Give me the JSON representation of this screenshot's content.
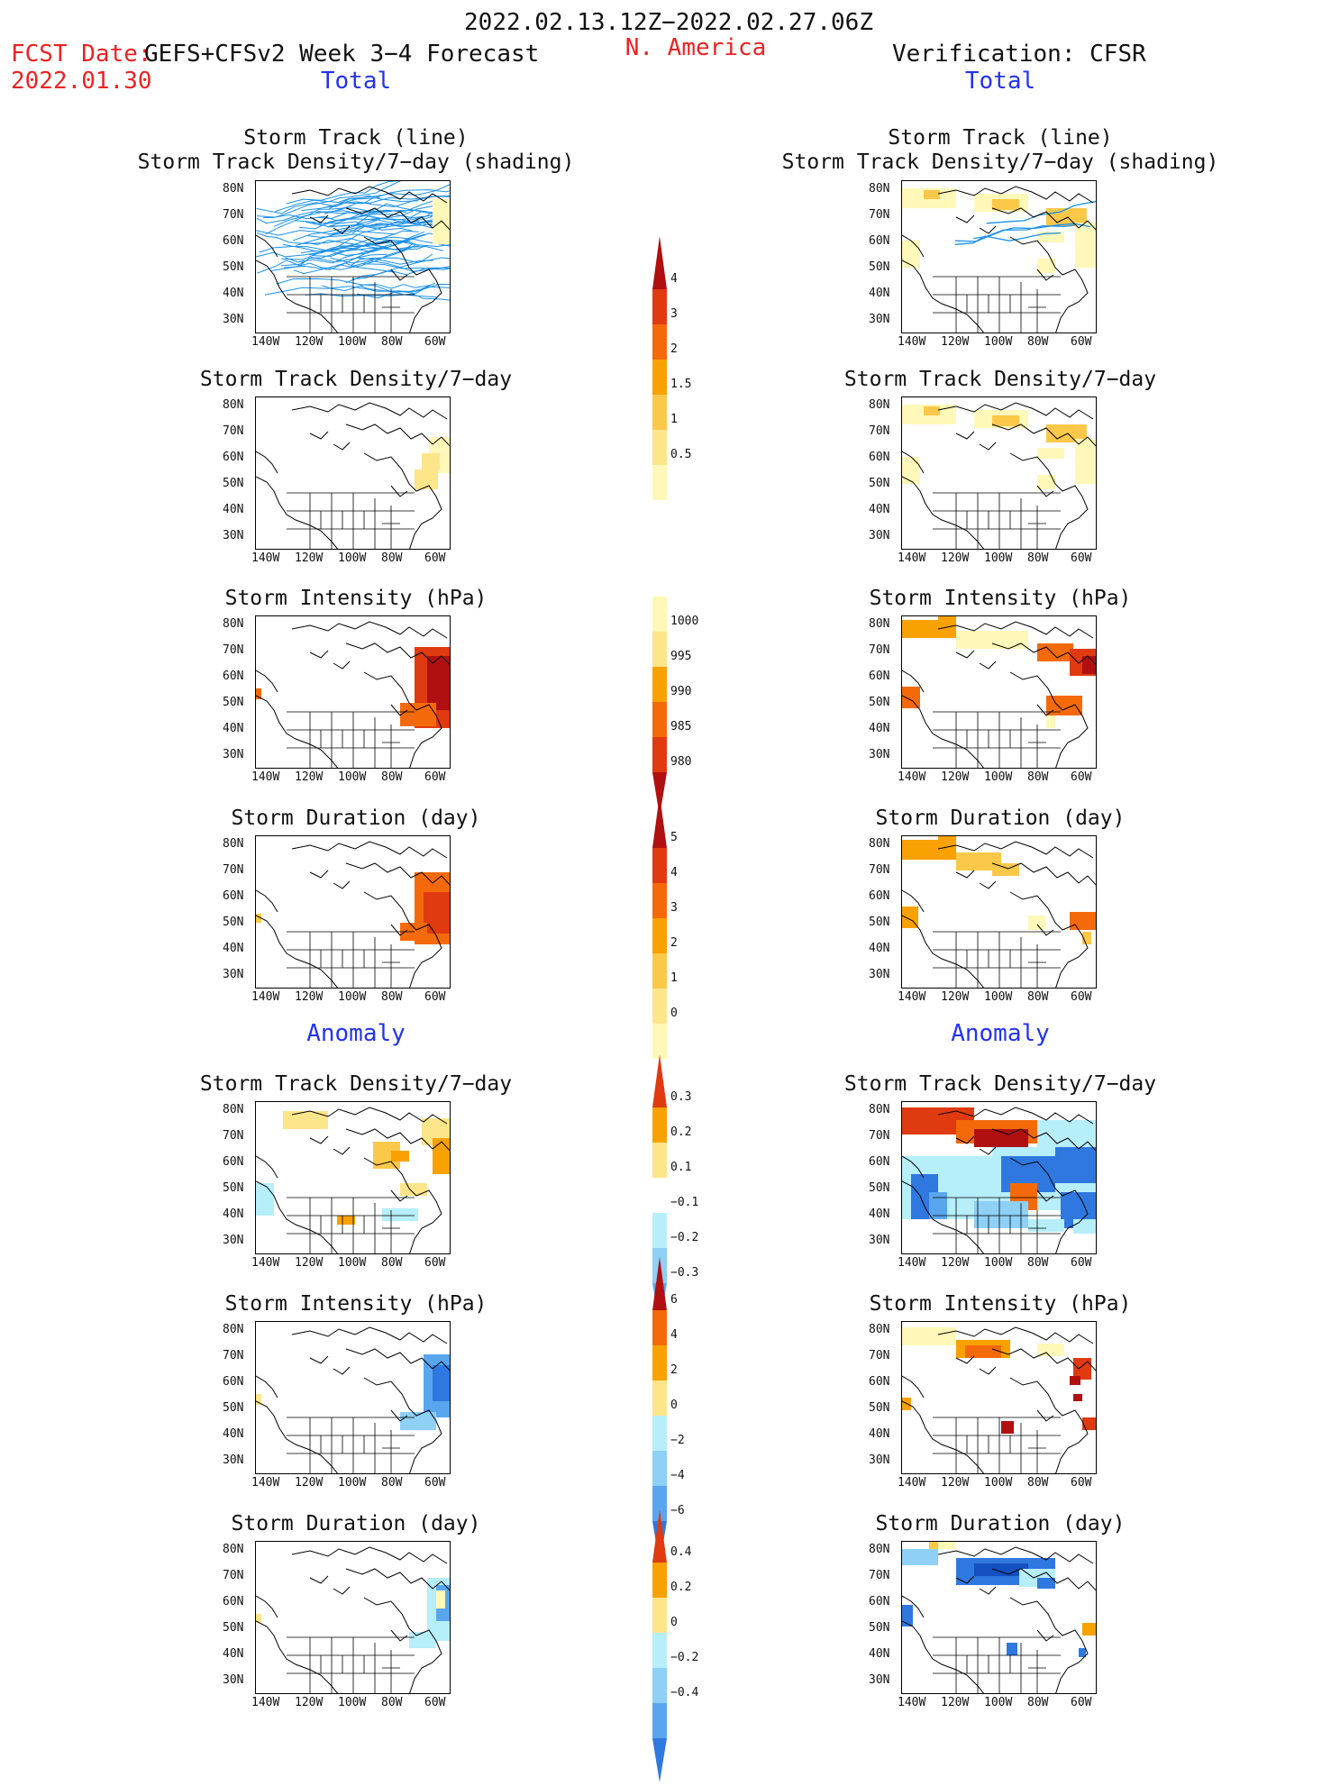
{
  "header": {
    "period": "2022.02.13.12Z−2022.02.27.06Z",
    "fcst_date_label": "FCST Date:",
    "fcst_date_value": "2022.01.30",
    "forecast_title": "GEFS+CFSv2 Week 3−4 Forecast",
    "region": "N. America",
    "verification": "Verification: CFSR"
  },
  "sections": {
    "total": "Total",
    "anomaly": "Anomaly"
  },
  "panel_titles": {
    "track_line": "Storm Track (line)",
    "track_shading": "Storm Track Density/7−day (shading)",
    "density": "Storm Track Density/7−day",
    "intensity": "Storm Intensity (hPa)",
    "duration": "Storm Duration (day)"
  },
  "axes": {
    "lat_labels": [
      "80N",
      "70N",
      "60N",
      "50N",
      "40N",
      "30N"
    ],
    "lon_labels": [
      "140W",
      "120W",
      "100W",
      "80W",
      "60W"
    ]
  },
  "colorbars": {
    "density_total": [
      "4",
      "3",
      "2",
      "1.5",
      "1",
      "0.5"
    ],
    "intensity_total": [
      "1000",
      "995",
      "990",
      "985",
      "980"
    ],
    "duration_total": [
      "5",
      "4",
      "3",
      "2",
      "1",
      "0"
    ],
    "density_anom": [
      "0.3",
      "0.2",
      "0.1",
      "−0.1",
      "−0.2",
      "−0.3"
    ],
    "intensity_anom": [
      "6",
      "4",
      "2",
      "0",
      "−2",
      "−4",
      "−6"
    ],
    "duration_anom": [
      "0.4",
      "0.2",
      "0",
      "−0.2",
      "−0.4"
    ]
  },
  "colors": {
    "warm": [
      "#fff8b8",
      "#fde58a",
      "#fbc84a",
      "#f8a100",
      "#f46a0a",
      "#e03a10",
      "#b01010"
    ],
    "cool": [
      "#b6eefa",
      "#8ed0f6",
      "#5aa6ee",
      "#2f78e0",
      "#1450c0"
    ],
    "track_line": "#1a90e8"
  }
}
